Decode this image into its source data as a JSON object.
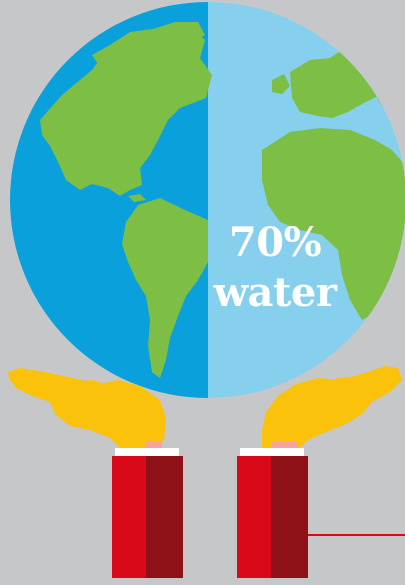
{
  "caption": {
    "percent": "70%",
    "word": "water"
  },
  "colors": {
    "background": "#c6c7c9",
    "ocean_left": "#0aa0dc",
    "ocean_right": "#86d0ee",
    "land": "#7dbe45",
    "hands": "#fbc20b",
    "sleeve_light": "#d9091a",
    "sleeve_dark": "#8e1117",
    "cuff": "#ffffff",
    "accent_line": "#d9091a"
  },
  "icons": {
    "globe": "globe-icon",
    "left_hand": "hand-icon",
    "right_hand": "hand-icon"
  }
}
